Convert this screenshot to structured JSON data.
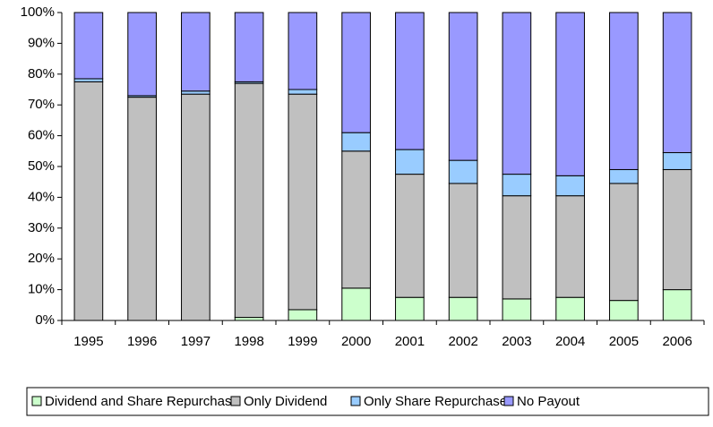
{
  "chart_data": {
    "type": "stacked-bar",
    "categories": [
      "1995",
      "1996",
      "1997",
      "1998",
      "1999",
      "2000",
      "2001",
      "2002",
      "2003",
      "2004",
      "2005",
      "2006"
    ],
    "series": [
      {
        "name": "Dividend and Share Repurchase",
        "color": "#ccffcc",
        "values": [
          0,
          0,
          0,
          1,
          3.5,
          10.5,
          7.5,
          7.5,
          7,
          7.5,
          6.5,
          10
        ]
      },
      {
        "name": "Only Dividend",
        "color": "#c0c0c0",
        "values": [
          77.5,
          72.5,
          73.5,
          76,
          70,
          44.5,
          40,
          37,
          33.5,
          33,
          38,
          39
        ]
      },
      {
        "name": "Only Share Repurchase",
        "color": "#99ccff",
        "values": [
          1,
          0.5,
          1,
          0.5,
          1.5,
          6,
          8,
          7.5,
          7,
          6.5,
          4.5,
          5.5
        ]
      },
      {
        "name": "No Payout",
        "color": "#9999ff",
        "values": [
          21.5,
          27,
          25.5,
          22.5,
          25,
          39,
          44.5,
          48,
          52.5,
          53,
          51,
          45.5
        ]
      }
    ],
    "ylim": [
      0,
      100
    ],
    "yticks": [
      {
        "value": 0,
        "label": "0%"
      },
      {
        "value": 10,
        "label": "10%"
      },
      {
        "value": 20,
        "label": "20%"
      },
      {
        "value": 30,
        "label": "30%"
      },
      {
        "value": 40,
        "label": "40%"
      },
      {
        "value": 50,
        "label": "50%"
      },
      {
        "value": 60,
        "label": "60%"
      },
      {
        "value": 70,
        "label": "70%"
      },
      {
        "value": 80,
        "label": "80%"
      },
      {
        "value": 90,
        "label": "90%"
      },
      {
        "value": 100,
        "label": "100%"
      }
    ]
  }
}
